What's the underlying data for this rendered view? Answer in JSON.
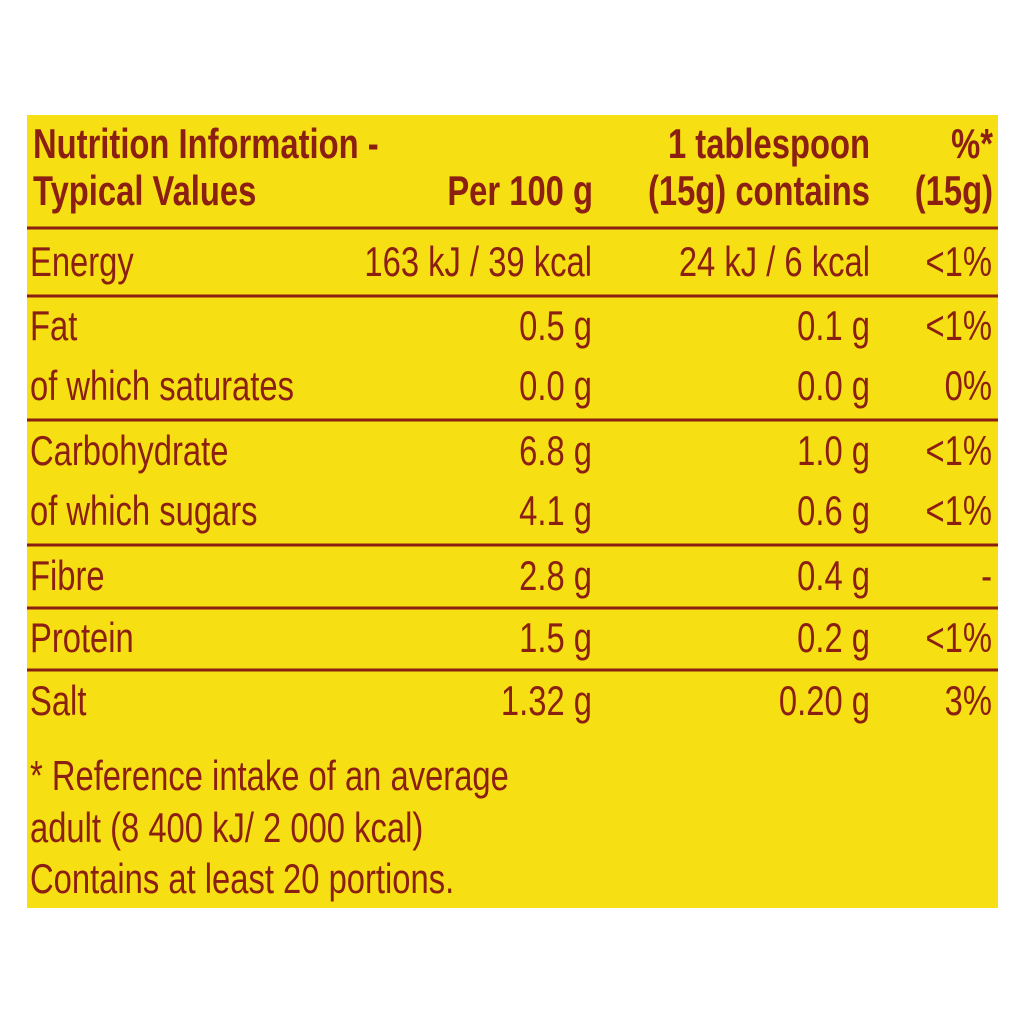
{
  "header": {
    "title": [
      "Nutrition Information -",
      "Typical Values"
    ],
    "per_100g": "Per 100 g",
    "per_portion": [
      "1 tablespoon",
      "(15g) contains"
    ],
    "reference_intake": [
      "%*",
      "(15g)"
    ]
  },
  "table": {
    "rows": [
      [
        "Energy",
        "163 kJ / 39 kcal",
        "24 kJ / 6 kcal",
        "<1%"
      ],
      [
        "Fat",
        "0.5 g",
        "0.1 g",
        "<1%"
      ],
      [
        "of which saturates",
        "0.0 g",
        "0.0 g",
        "0%"
      ],
      [
        "Carbohydrate",
        "6.8 g",
        "1.0 g",
        "<1%"
      ],
      [
        "of which sugars",
        "4.1 g",
        "0.6 g",
        "<1%"
      ],
      [
        "Fibre",
        "2.8 g",
        "0.4 g",
        "-"
      ],
      [
        "Protein",
        "1.5 g",
        "0.2 g",
        "<1%"
      ],
      [
        "Salt",
        "1.32 g",
        "0.20 g",
        "3%"
      ]
    ]
  },
  "footnote": [
    "* Reference intake of an average",
    "adult (8 400 kJ/ 2 000 kcal)",
    "Contains at least 20 portions."
  ]
}
